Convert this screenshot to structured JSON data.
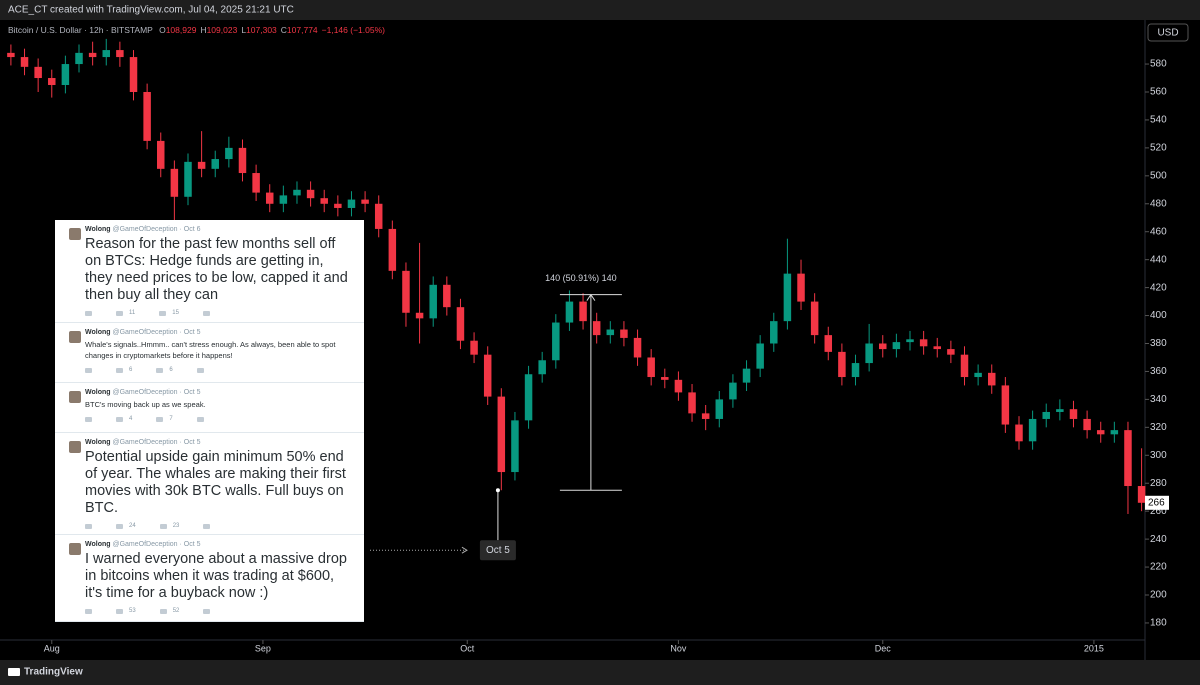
{
  "header": {
    "credit": "ACE_CT created with TradingView.com, Jul 04, 2025 21:21 UTC",
    "currency": "USD",
    "footer": "TradingView"
  },
  "legend": {
    "symbol": "Bitcoin / U.S. Dollar · 12h · BITSTAMP",
    "ohlc": [
      {
        "label": "O",
        "value": "108,929"
      },
      {
        "label": "H",
        "value": "109,023"
      },
      {
        "label": "L",
        "value": "107,303"
      },
      {
        "label": "C",
        "value": "107,774"
      }
    ],
    "change": "−1,146 (−1.05%)"
  },
  "chart_data": {
    "type": "candlestick",
    "x": [
      -6,
      -4,
      -2,
      0,
      2,
      4,
      6,
      8,
      10,
      12,
      14,
      16,
      18,
      20,
      22,
      24,
      26,
      28,
      30,
      32,
      34,
      36,
      38,
      40,
      42,
      44,
      46,
      48,
      50,
      52,
      54,
      56,
      58,
      60,
      62,
      64,
      66,
      68,
      70,
      72,
      74,
      76,
      78,
      80,
      82,
      84,
      86,
      88,
      90,
      92,
      94,
      96,
      98,
      100,
      102,
      104,
      106,
      108,
      110,
      112,
      114,
      116,
      118,
      120,
      122,
      124,
      126,
      128,
      130,
      132,
      134,
      136,
      138,
      140,
      142,
      144,
      146,
      148,
      150,
      152,
      154,
      156,
      158,
      160
    ],
    "open": [
      588,
      585,
      578,
      570,
      565,
      580,
      588,
      585,
      590,
      585,
      560,
      525,
      505,
      485,
      510,
      505,
      512,
      520,
      502,
      488,
      480,
      486,
      490,
      484,
      480,
      477,
      483,
      480,
      462,
      432,
      402,
      398,
      422,
      406,
      382,
      372,
      342,
      288,
      325,
      358,
      368,
      395,
      410,
      396,
      386,
      390,
      384,
      370,
      356,
      354,
      345,
      330,
      326,
      340,
      352,
      362,
      380,
      396,
      430,
      410,
      386,
      374,
      356,
      366,
      380,
      376,
      381,
      383,
      378,
      376,
      372,
      356,
      359,
      350,
      322,
      310,
      326,
      331,
      333,
      326,
      318,
      315,
      318,
      278
    ],
    "high": [
      594,
      591,
      584,
      576,
      586,
      594,
      596,
      598,
      596,
      590,
      566,
      531,
      511,
      516,
      532,
      518,
      528,
      526,
      508,
      494,
      493,
      496,
      496,
      490,
      486,
      489,
      489,
      486,
      468,
      438,
      452,
      428,
      428,
      412,
      388,
      378,
      348,
      331,
      364,
      374,
      401,
      418,
      416,
      402,
      396,
      396,
      390,
      376,
      362,
      360,
      351,
      336,
      346,
      358,
      368,
      386,
      402,
      455,
      440,
      416,
      392,
      380,
      372,
      394,
      386,
      387,
      389,
      389,
      384,
      382,
      378,
      365,
      365,
      356,
      328,
      332,
      337,
      340,
      339,
      332,
      324,
      324,
      324,
      305
    ],
    "low": [
      579,
      572,
      560,
      556,
      559,
      574,
      579,
      579,
      578,
      554,
      519,
      499,
      462,
      479,
      499,
      499,
      506,
      496,
      482,
      474,
      474,
      480,
      478,
      474,
      471,
      471,
      474,
      456,
      426,
      392,
      380,
      392,
      400,
      376,
      366,
      336,
      275,
      282,
      319,
      352,
      362,
      389,
      390,
      380,
      380,
      378,
      364,
      350,
      348,
      339,
      324,
      318,
      320,
      334,
      346,
      356,
      374,
      390,
      404,
      380,
      368,
      350,
      350,
      360,
      370,
      370,
      375,
      372,
      370,
      366,
      350,
      350,
      344,
      316,
      304,
      304,
      320,
      325,
      320,
      312,
      309,
      309,
      258,
      260
    ],
    "close": [
      585,
      578,
      570,
      565,
      580,
      588,
      585,
      590,
      585,
      560,
      525,
      505,
      485,
      510,
      505,
      512,
      520,
      502,
      488,
      480,
      486,
      490,
      484,
      480,
      477,
      483,
      480,
      462,
      432,
      402,
      398,
      422,
      406,
      382,
      372,
      342,
      288,
      325,
      358,
      368,
      395,
      410,
      396,
      386,
      390,
      384,
      370,
      356,
      354,
      345,
      330,
      326,
      340,
      352,
      362,
      380,
      396,
      430,
      410,
      386,
      374,
      356,
      366,
      380,
      376,
      381,
      383,
      378,
      376,
      372,
      356,
      359,
      350,
      322,
      310,
      326,
      331,
      333,
      326,
      318,
      315,
      318,
      278,
      266
    ],
    "up_color": "#089981",
    "down_color": "#f23645",
    "xlim": [
      -7.6,
      160.5
    ],
    "xticks": [
      {
        "value": 0,
        "label": "Aug"
      },
      {
        "value": 31,
        "label": "Sep"
      },
      {
        "value": 61,
        "label": "Oct"
      },
      {
        "value": 92,
        "label": "Nov"
      },
      {
        "value": 122,
        "label": "Dec"
      },
      {
        "value": 153,
        "label": "2015"
      }
    ],
    "ylim": [
      167.8,
      605.8
    ],
    "yticks": [
      180,
      200,
      220,
      240,
      260,
      280,
      300,
      320,
      340,
      360,
      380,
      400,
      420,
      440,
      460,
      480,
      500,
      520,
      540,
      560,
      580
    ],
    "last_price": 266,
    "measure": {
      "label": "140 (50.91%) 140",
      "from": 275,
      "to": 415,
      "x_from": 74.6,
      "x_to": 83.7
    },
    "marker": {
      "label": "Oct 5",
      "x": 65.5,
      "price": 275
    }
  },
  "tweets": [
    {
      "name": "Wolong",
      "handle": "@GameOfDeception",
      "date": "Oct 6",
      "text": "Reason for the past few months sell off on BTCs: Hedge funds are getting in, they need prices to be low, capped it and then buy all they can",
      "retweets": "11",
      "favorites": "15"
    },
    {
      "name": "Wolong",
      "handle": "@GameOfDeception",
      "date": "Oct 5",
      "text": "Whale's signals..Hmmm.. can't stress enough. As always, been able to spot changes in cryptomarkets before it happens!",
      "retweets": "6",
      "favorites": "6"
    },
    {
      "name": "Wolong",
      "handle": "@GameOfDeception",
      "date": "Oct 5",
      "text": "BTC's moving back up as we speak.",
      "retweets": "4",
      "favorites": "7"
    },
    {
      "name": "Wolong",
      "handle": "@GameOfDeception",
      "date": "Oct 5",
      "text": "Potential upside gain minimum 50% end of year. The whales are making their first movies with 30k BTC walls. Full buys on BTC.",
      "retweets": "24",
      "favorites": "23"
    },
    {
      "name": "Wolong",
      "handle": "@GameOfDeception",
      "date": "Oct 5",
      "text": "I warned everyone about a massive drop in bitcoins when it was trading at $600, it's time for a buyback now :)",
      "retweets": "53",
      "favorites": "52"
    }
  ]
}
